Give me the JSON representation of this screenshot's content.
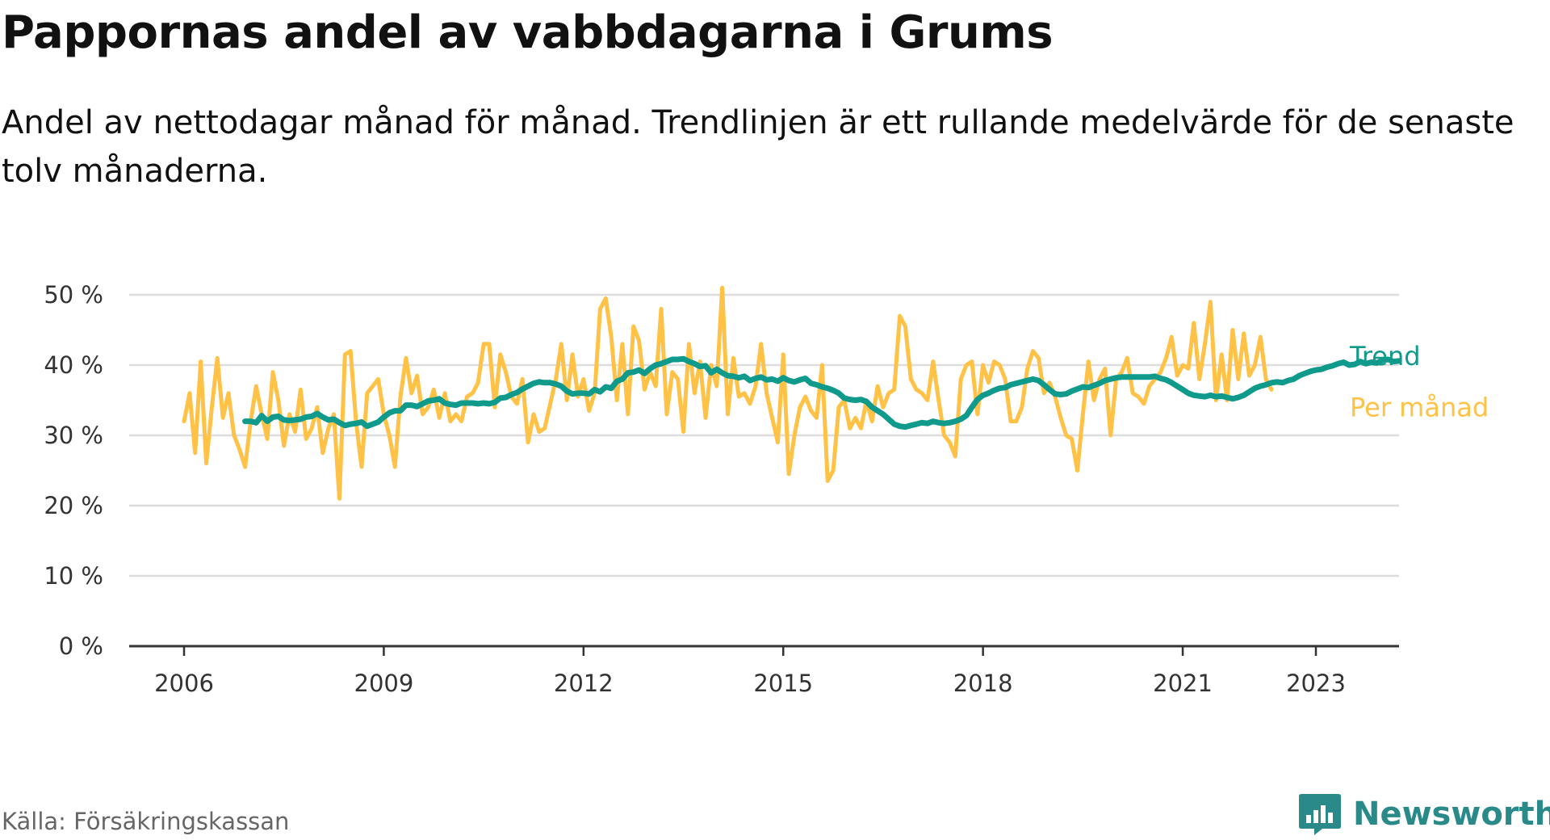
{
  "header": {
    "title": "Pappornas andel av vabbdagarna i Grums",
    "subtitle": "Andel av nettodagar månad för månad. Trendlinjen är ett rullande medelvärde för de senaste tolv månaderna."
  },
  "footer": {
    "source": "Källa: Försäkringskassan",
    "brand": "Newsworthy"
  },
  "colors": {
    "per_month": "#ffc246",
    "trend": "#0f9a8c",
    "grid": "#dddddd",
    "axis": "#333333",
    "brand": "#2a8a89"
  },
  "chart_data": {
    "type": "line",
    "y_unit": "%",
    "ylim": [
      0,
      50
    ],
    "y_ticks": [
      0,
      10,
      20,
      30,
      40,
      50
    ],
    "y_tick_labels": [
      "0 %",
      "10 %",
      "20 %",
      "30 %",
      "40 %",
      "50 %"
    ],
    "x_range": [
      "2006-01",
      "2023-06"
    ],
    "x_ticks": [
      "2006-01",
      "2009-01",
      "2012-01",
      "2015-01",
      "2018-01",
      "2021-01",
      "2023-01"
    ],
    "x_tick_labels": [
      "2006",
      "2009",
      "2012",
      "2015",
      "2018",
      "2021",
      "2023"
    ],
    "grid": true,
    "legend": "end-of-line labels, right",
    "series": [
      {
        "name": "Per månad",
        "color": "#ffc246",
        "start": "2006-01",
        "step": "month",
        "values": [
          32,
          36,
          27.5,
          40.5,
          26,
          34,
          41,
          32.5,
          36,
          30,
          28,
          25.5,
          32,
          37,
          33,
          29.5,
          39,
          35,
          28.5,
          33,
          30.5,
          36.5,
          29.5,
          31,
          34,
          27.5,
          31,
          33,
          21,
          41.5,
          42,
          32,
          25.5,
          36,
          37,
          38,
          33,
          30,
          25.5,
          35.5,
          41,
          36,
          38.5,
          33,
          34,
          36.5,
          32.5,
          36,
          32,
          33,
          32,
          35.5,
          36,
          37.5,
          43,
          43,
          34,
          41.5,
          39,
          35.5,
          34.5,
          38,
          29,
          33,
          30.5,
          31,
          34.5,
          38,
          43,
          35,
          41.5,
          35.5,
          38,
          33.5,
          36,
          48,
          49.5,
          44,
          35,
          43,
          33,
          45.5,
          43.5,
          36.5,
          39,
          37,
          48,
          33,
          39,
          38,
          30.5,
          43,
          36,
          40.5,
          32.5,
          40,
          37,
          51,
          33,
          41,
          35.5,
          36,
          34.5,
          37,
          43,
          36,
          32.5,
          29,
          41.5,
          24.5,
          30,
          34,
          35.5,
          33.5,
          32.5,
          40,
          23.5,
          25,
          34,
          35,
          31,
          32.5,
          31,
          35,
          32,
          37,
          34,
          36,
          36.5,
          47,
          45.5,
          38,
          36.5,
          36,
          35,
          40.5,
          35,
          30,
          29,
          27,
          38,
          40,
          40.5,
          33,
          40,
          37.5,
          40.5,
          40,
          38,
          32,
          32,
          34,
          39.5,
          42,
          41,
          36,
          37.5,
          35.5,
          32.5,
          30,
          29.5,
          25,
          33,
          40.5,
          35,
          38,
          39.5,
          30,
          38,
          39,
          41,
          36,
          35.5,
          34.5,
          37,
          38,
          39,
          41,
          44,
          38.5,
          40,
          39.5,
          46,
          38,
          43,
          49,
          35,
          41.5,
          35,
          45,
          38,
          44.5,
          38.5,
          40,
          44,
          38,
          36.5
        ]
      },
      {
        "name": "Trend",
        "color": "#0f9a8c",
        "start": "2006-12",
        "step": "month",
        "values": [
          32,
          32,
          31.8,
          32.8,
          32,
          32.6,
          32.7,
          32.2,
          32.1,
          32.2,
          32.3,
          32.6,
          32.7,
          33.1,
          32.6,
          32.2,
          32.3,
          31.8,
          31.4,
          31.6,
          31.7,
          31.9,
          31.3,
          31.6,
          31.9,
          32.6,
          33.2,
          33.5,
          33.5,
          34.3,
          34.3,
          34.1,
          34.5,
          34.9,
          35,
          35.2,
          34.6,
          34.4,
          34.3,
          34.6,
          34.6,
          34.6,
          34.5,
          34.6,
          34.5,
          34.7,
          35.3,
          35.4,
          35.8,
          36.1,
          36.6,
          37,
          37.4,
          37.6,
          37.5,
          37.5,
          37.3,
          37,
          36.3,
          35.9,
          36,
          36,
          35.9,
          36.5,
          36.2,
          36.9,
          36.7,
          37.7,
          38,
          38.9,
          39,
          39.3,
          38.8,
          39.5,
          40,
          40.2,
          40.5,
          40.8,
          40.8,
          40.9,
          40.5,
          40.2,
          39.8,
          39.9,
          38.9,
          39.4,
          38.9,
          38.5,
          38.4,
          38.2,
          38.4,
          37.8,
          38.1,
          38.3,
          37.9,
          38,
          37.7,
          38.2,
          37.8,
          37.6,
          37.9,
          38.1,
          37.4,
          37.2,
          36.9,
          36.7,
          36.4,
          36,
          35.3,
          35.1,
          35,
          35.1,
          34.8,
          34,
          33.5,
          33,
          32.3,
          31.6,
          31.3,
          31.2,
          31.4,
          31.6,
          31.8,
          31.7,
          32,
          31.8,
          31.7,
          31.8,
          32,
          32.3,
          32.8,
          34,
          35.1,
          35.7,
          36,
          36.4,
          36.7,
          36.8,
          37.2,
          37.4,
          37.6,
          37.8,
          38,
          37.8,
          37.2,
          36.5,
          35.9,
          35.8,
          35.9,
          36.3,
          36.6,
          36.9,
          36.8,
          37.1,
          37.4,
          37.8,
          38,
          38.2,
          38.3,
          38.3,
          38.3,
          38.3,
          38.3,
          38.3,
          38.4,
          38.1,
          37.9,
          37.5,
          37,
          36.5,
          36,
          35.7,
          35.6,
          35.5,
          35.7,
          35.5,
          35.6,
          35.4,
          35.2,
          35.4,
          35.7,
          36.2,
          36.7,
          37,
          37.2,
          37.5,
          37.6,
          37.5,
          37.8,
          38,
          38.5,
          38.8,
          39.1,
          39.3,
          39.4,
          39.7,
          39.9,
          40.2,
          40.4,
          40,
          40.1,
          40.5,
          40.2,
          40.4,
          40.3,
          40.7,
          40.8,
          40.5,
          40.6
        ]
      }
    ]
  }
}
